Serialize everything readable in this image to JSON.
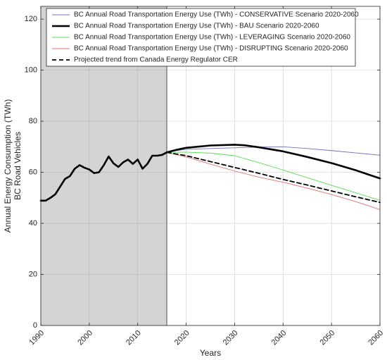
{
  "chart_data": {
    "type": "line",
    "title": "",
    "xlabel": "Years",
    "ylabel_lines": [
      "Annual Energy Consumption (TWh)",
      "BC Road Vehicles"
    ],
    "xlim": [
      1990,
      2060
    ],
    "ylim": [
      0,
      125
    ],
    "xticks": [
      1990,
      2000,
      2010,
      2020,
      2030,
      2040,
      2050,
      2060
    ],
    "yticks": [
      0,
      20,
      40,
      60,
      80,
      100,
      120
    ],
    "grid": true,
    "legend_position": "top",
    "historical_shading": {
      "x_start": 1990,
      "x_end": 2016,
      "color": "#d4d4d4"
    },
    "series": [
      {
        "name": "BC Annual Road Transportation Energy Use (TWh) - CONSERVATIVE Scenario 2020-2060",
        "color": "#7070c0",
        "width": 0.9,
        "dash": "",
        "x": [
          2016,
          2018,
          2020,
          2025,
          2030,
          2035,
          2040,
          2045,
          2050,
          2055,
          2060
        ],
        "y": [
          67.8,
          68.5,
          69.0,
          69.3,
          69.6,
          69.9,
          70.0,
          69.3,
          68.5,
          67.6,
          66.7
        ]
      },
      {
        "name": "BC Annual Road Transportation Energy Use (TWh) - BAU Scenario 2020-2060",
        "color": "#000000",
        "width": 2.6,
        "dash": "",
        "x": [
          1990,
          1991,
          1992,
          1993,
          1994,
          1995,
          1996,
          1997,
          1998,
          1999,
          2000,
          2001,
          2002,
          2003,
          2004,
          2005,
          2006,
          2007,
          2008,
          2009,
          2010,
          2011,
          2012,
          2013,
          2014,
          2015,
          2016,
          2018,
          2020,
          2025,
          2030,
          2032,
          2035,
          2040,
          2045,
          2050,
          2055,
          2060
        ],
        "y": [
          48.9,
          48.9,
          50.0,
          51.4,
          54.4,
          57.4,
          58.5,
          61.4,
          62.8,
          61.8,
          61.1,
          59.7,
          60.0,
          62.8,
          66.2,
          63.5,
          62.1,
          63.9,
          65.0,
          63.3,
          65.0,
          61.4,
          63.3,
          66.5,
          66.5,
          66.8,
          67.8,
          68.8,
          69.6,
          70.5,
          70.8,
          70.6,
          69.8,
          68.2,
          66.0,
          63.6,
          60.8,
          57.6
        ]
      },
      {
        "name": "BC Annual Road Transportation Energy Use (TWh) - LEVERAGING Scenario 2020-2060",
        "color": "#55dd55",
        "width": 0.9,
        "dash": "",
        "x": [
          2016,
          2020,
          2025,
          2030,
          2035,
          2040,
          2045,
          2050,
          2055,
          2060
        ],
        "y": [
          67.8,
          67.9,
          67.5,
          66.5,
          63.8,
          60.9,
          57.9,
          54.9,
          52.0,
          49.0
        ]
      },
      {
        "name": "BC Annual Road Transportation Energy Use (TWh) - DISRUPTING Scenario 2020-2060",
        "color": "#e07070",
        "width": 0.9,
        "dash": "",
        "x": [
          2016,
          2020,
          2025,
          2030,
          2035,
          2040,
          2045,
          2050,
          2055,
          2060
        ],
        "y": [
          67.8,
          66.0,
          63.2,
          60.5,
          58.1,
          56.1,
          53.8,
          51.3,
          48.5,
          45.4
        ]
      },
      {
        "name": "Projected trend from Canada Energy Regulator CER",
        "color": "#000000",
        "width": 1.8,
        "dash": "6,4",
        "x": [
          2016,
          2020,
          2025,
          2030,
          2035,
          2040,
          2045,
          2050,
          2055,
          2060
        ],
        "y": [
          67.8,
          66.5,
          64.2,
          61.9,
          59.6,
          57.2,
          55.0,
          52.7,
          50.4,
          48.2
        ]
      }
    ]
  }
}
